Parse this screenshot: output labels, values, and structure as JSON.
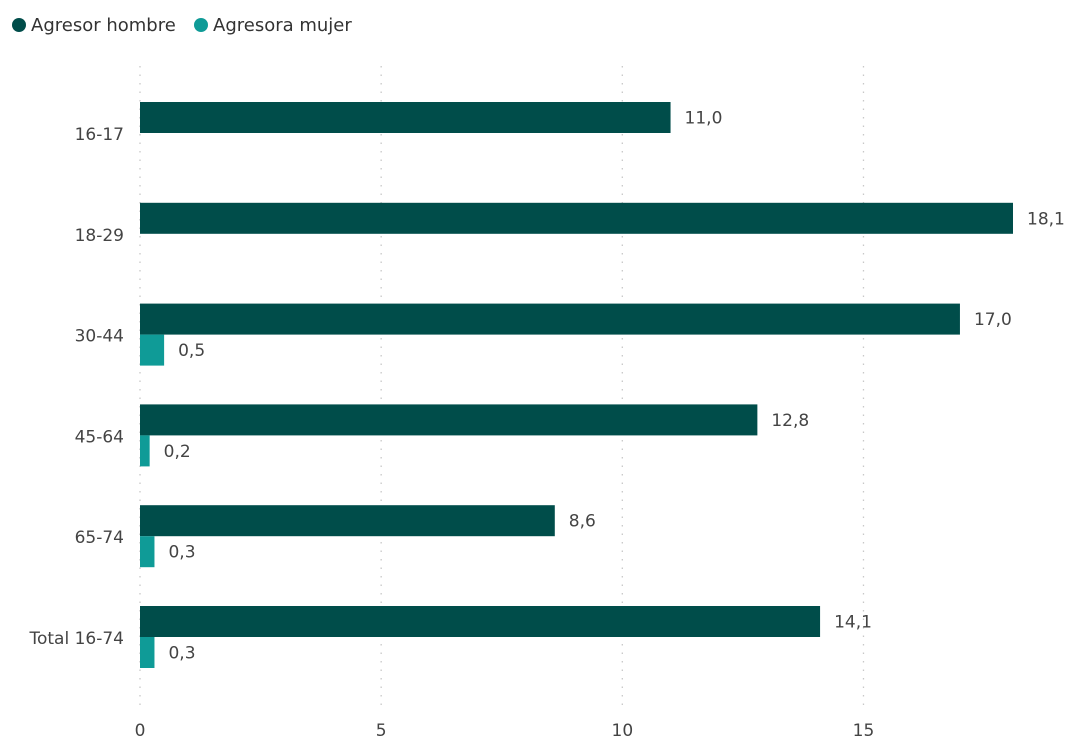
{
  "chart_data": {
    "type": "bar",
    "orientation": "horizontal",
    "title": "",
    "xlabel": "",
    "ylabel": "",
    "categories": [
      "16-17",
      "18-29",
      "30-44",
      "45-64",
      "65-74",
      "Total 16-74"
    ],
    "series": [
      {
        "name": "Agresor hombre",
        "color": "#004d4a",
        "values": [
          11.0,
          18.1,
          17.0,
          12.8,
          8.6,
          14.1
        ],
        "labels": [
          "11,0",
          "18,1",
          "17,0",
          "12,8",
          "8,6",
          "14,1"
        ]
      },
      {
        "name": "Agresora mujer",
        "color": "#0f9b97",
        "values": [
          null,
          null,
          0.5,
          0.2,
          0.3,
          0.3
        ],
        "labels": [
          "",
          "",
          "0,5",
          "0,2",
          "0,3",
          "0,3"
        ]
      }
    ],
    "xlim": [
      0,
      18.1
    ],
    "xticks": [
      0,
      5,
      10,
      15
    ],
    "xtick_labels": [
      "0",
      "5",
      "10",
      "15"
    ],
    "grid": "vertical dotted",
    "legend": "top-left"
  }
}
